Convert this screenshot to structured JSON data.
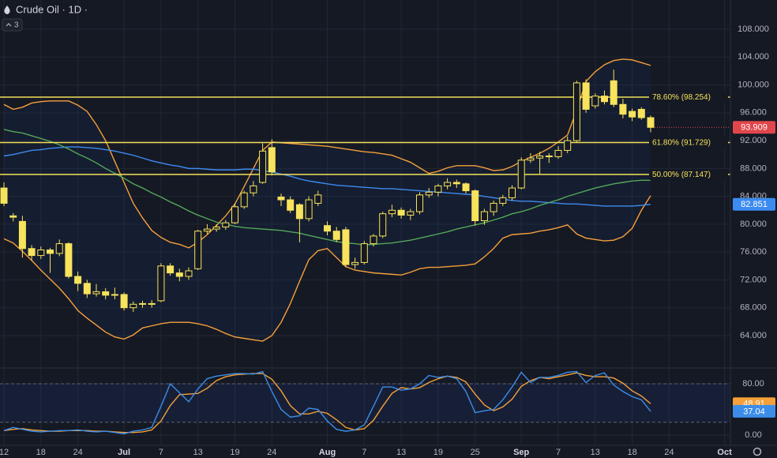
{
  "chart_data": {
    "type": "candlestick",
    "title": "Crude Oil · 1D ·",
    "hidden_indicators": 3,
    "categories": [
      "12",
      null,
      null,
      null,
      "18",
      null,
      null,
      null,
      "24",
      null,
      null,
      null,
      null,
      "Jul",
      null,
      null,
      null,
      "7",
      null,
      null,
      null,
      "13",
      null,
      null,
      null,
      "19",
      null,
      null,
      null,
      "24",
      null,
      null,
      null,
      null,
      null,
      "Aug",
      null,
      null,
      null,
      "7",
      null,
      null,
      null,
      "13",
      null,
      null,
      null,
      "19",
      null,
      null,
      null,
      "25",
      null,
      null,
      null,
      null,
      "Sep",
      null,
      null,
      null,
      "7",
      null,
      null,
      null,
      "13",
      null,
      null,
      null,
      "18",
      null,
      null,
      null,
      "24",
      null,
      null,
      null,
      null,
      null,
      "Oct"
    ],
    "open": [
      85.2,
      81.2,
      80.4,
      76.5,
      75.5,
      76.3,
      75.8,
      77.2,
      72.5,
      71.5,
      70.0,
      70.3,
      69.8,
      69.9,
      68.0,
      68.5,
      68.6,
      69.0,
      74.0,
      73.0,
      72.5,
      73.6,
      79.0,
      79.3,
      79.6,
      80.2,
      82.5,
      84.5,
      86.0,
      91.0,
      83.9,
      83.5,
      82.8,
      80.8,
      83.0,
      79.8,
      79.0,
      79.2,
      74.2,
      74.5,
      77.2,
      78.3,
      81.5,
      82.0,
      81.3,
      81.8,
      84.2,
      84.6,
      85.5,
      86.0,
      85.8,
      84.8,
      80.5,
      81.8,
      83.0,
      83.8,
      85.2,
      89.2,
      89.5,
      89.8,
      89.7,
      90.6,
      92.0,
      100.3,
      97.0,
      98.4,
      100.6,
      97.2,
      96.2,
      96.5,
      95.3,
      null,
      null,
      null,
      null,
      null,
      null,
      null,
      null
    ],
    "high": [
      86.0,
      81.6,
      81.2,
      77.0,
      76.8,
      76.6,
      77.8,
      77.4,
      73.2,
      72.0,
      71.4,
      70.8,
      70.9,
      70.2,
      68.9,
      69.0,
      69.1,
      74.4,
      74.4,
      73.6,
      73.8,
      79.2,
      80.0,
      80.0,
      80.6,
      83.0,
      84.8,
      86.2,
      91.6,
      92.2,
      84.4,
      84.0,
      83.0,
      84.0,
      84.8,
      80.4,
      79.6,
      79.6,
      75.2,
      77.6,
      78.6,
      81.8,
      82.8,
      82.4,
      82.2,
      84.6,
      85.2,
      85.8,
      86.6,
      86.4,
      86.0,
      85.0,
      82.2,
      83.4,
      84.2,
      85.6,
      89.6,
      90.2,
      90.4,
      90.2,
      91.2,
      92.6,
      100.6,
      100.8,
      98.8,
      99.2,
      102.2,
      98.0,
      96.6,
      96.8,
      95.6,
      null,
      null,
      null,
      null,
      null,
      null,
      null,
      null
    ],
    "low": [
      82.6,
      80.4,
      75.2,
      74.8,
      75.0,
      73.0,
      75.4,
      72.2,
      70.4,
      69.4,
      69.6,
      69.2,
      69.2,
      67.6,
      67.4,
      68.0,
      68.0,
      68.8,
      72.6,
      71.8,
      72.0,
      73.4,
      78.6,
      78.9,
      79.2,
      80.0,
      82.2,
      84.0,
      85.8,
      87.0,
      82.6,
      81.6,
      77.4,
      80.4,
      82.6,
      78.4,
      77.4,
      73.8,
      73.6,
      74.2,
      76.8,
      78.0,
      81.0,
      80.8,
      80.6,
      81.4,
      83.8,
      84.0,
      85.0,
      85.2,
      84.4,
      79.8,
      79.9,
      81.2,
      82.6,
      83.4,
      85.0,
      88.8,
      87.2,
      88.8,
      89.4,
      90.2,
      91.8,
      96.0,
      96.6,
      97.2,
      96.8,
      95.2,
      94.8,
      95.0,
      93.2,
      null,
      null,
      null,
      null,
      null,
      null,
      null,
      null
    ],
    "close": [
      83.0,
      81.0,
      76.5,
      75.5,
      76.3,
      75.8,
      77.2,
      72.5,
      71.5,
      70.0,
      70.3,
      69.8,
      69.9,
      68.0,
      68.5,
      68.6,
      68.5,
      74.0,
      73.0,
      72.5,
      73.3,
      79.0,
      79.3,
      79.6,
      80.2,
      82.5,
      84.5,
      85.5,
      90.5,
      87.5,
      83.5,
      82.0,
      80.8,
      83.5,
      84.2,
      79.0,
      77.8,
      74.2,
      74.5,
      77.2,
      78.3,
      81.5,
      82.0,
      81.3,
      81.8,
      84.2,
      84.6,
      85.5,
      86.0,
      85.8,
      84.8,
      80.5,
      81.8,
      83.0,
      83.8,
      85.2,
      89.2,
      89.5,
      89.8,
      89.7,
      90.6,
      92.0,
      100.3,
      96.5,
      98.4,
      97.6,
      97.2,
      95.8,
      95.4,
      95.3,
      93.909,
      null,
      null,
      null,
      null,
      null,
      null,
      null,
      null
    ],
    "color": "#f7e35c",
    "last_color": "#e0474c",
    "band_fill": true,
    "series": [
      {
        "color": "#f5a03a",
        "values": [
          97.2,
          96.5,
          96.8,
          97.4,
          97.6,
          97.7,
          97.7,
          97.7,
          97.1,
          96.2,
          94.3,
          92.0,
          89.0,
          86.0,
          83.0,
          80.9,
          79.1,
          78.1,
          77.4,
          77.1,
          76.6,
          77.4,
          78.5,
          79.8,
          81.2,
          82.9,
          85.4,
          88.0,
          90.6,
          91.8,
          91.7,
          91.6,
          91.5,
          91.4,
          91.3,
          91.2,
          91.0,
          90.8,
          90.6,
          90.4,
          90.3,
          90.1,
          89.9,
          89.4,
          88.9,
          88.1,
          87.3,
          87.6,
          88.1,
          88.4,
          88.4,
          88.4,
          88.1,
          87.7,
          87.8,
          88.3,
          89.0,
          89.6,
          90.2,
          90.9,
          91.8,
          92.8,
          96.4,
          100.5,
          101.9,
          102.9,
          103.5,
          103.7,
          103.6,
          103.2,
          102.8,
          null,
          null,
          null,
          null,
          null,
          null,
          null,
          null
        ]
      },
      {
        "color": "#f5a03a",
        "values": [
          77.9,
          77.3,
          76.1,
          74.8,
          73.4,
          72.1,
          70.8,
          69.3,
          67.6,
          66.5,
          65.5,
          64.5,
          63.8,
          63.5,
          64.1,
          65.1,
          65.4,
          65.7,
          65.9,
          65.9,
          65.9,
          65.7,
          65.4,
          64.9,
          64.3,
          63.8,
          63.6,
          63.4,
          63.2,
          64.0,
          65.9,
          68.6,
          71.8,
          74.9,
          76.2,
          76.5,
          75.2,
          73.9,
          73.4,
          73.2,
          73.0,
          72.9,
          72.8,
          72.7,
          73.1,
          73.6,
          73.8,
          73.8,
          73.9,
          74.0,
          74.1,
          74.3,
          75.3,
          76.5,
          78.0,
          78.5,
          78.6,
          78.7,
          79.0,
          79.2,
          79.5,
          79.9,
          78.6,
          78.0,
          77.8,
          77.6,
          77.7,
          78.2,
          79.4,
          82.0,
          84.1,
          null,
          null,
          null,
          null,
          null,
          null,
          null,
          null
        ]
      },
      {
        "color": "#3d8bf0",
        "last_label": true,
        "values": [
          89.8,
          90.0,
          90.3,
          90.6,
          90.7,
          90.9,
          91.0,
          91.1,
          91.1,
          91.0,
          90.9,
          90.7,
          90.5,
          90.2,
          89.9,
          89.5,
          89.1,
          88.8,
          88.5,
          88.3,
          88.0,
          88.0,
          87.9,
          87.8,
          87.8,
          87.8,
          87.9,
          87.9,
          87.7,
          87.5,
          87.2,
          86.9,
          86.5,
          86.2,
          86.0,
          85.8,
          85.6,
          85.5,
          85.4,
          85.3,
          85.2,
          85.1,
          85.1,
          85.0,
          84.9,
          84.8,
          84.7,
          84.6,
          84.5,
          84.4,
          84.3,
          84.2,
          84.0,
          83.8,
          83.6,
          83.4,
          83.3,
          83.3,
          83.2,
          83.1,
          83.0,
          82.9,
          82.9,
          82.8,
          82.7,
          82.6,
          82.6,
          82.6,
          82.6,
          82.7,
          82.851,
          null,
          null,
          null,
          null,
          null,
          null,
          null,
          null
        ]
      },
      {
        "color": "#52a85a",
        "values": [
          93.6,
          93.3,
          93.1,
          92.7,
          92.3,
          91.9,
          91.4,
          90.8,
          90.1,
          89.5,
          88.8,
          88.0,
          87.3,
          86.6,
          85.8,
          85.2,
          84.5,
          83.9,
          83.2,
          82.6,
          81.9,
          81.3,
          80.8,
          80.3,
          80.0,
          79.7,
          79.5,
          79.4,
          79.3,
          79.2,
          79.1,
          78.9,
          78.7,
          78.4,
          78.1,
          77.8,
          77.5,
          77.3,
          77.2,
          77.0,
          77.1,
          77.2,
          77.3,
          77.5,
          77.7,
          78.0,
          78.3,
          78.6,
          78.9,
          79.3,
          79.6,
          79.9,
          80.2,
          80.6,
          81.0,
          81.5,
          81.8,
          82.2,
          82.7,
          83.1,
          83.5,
          84.0,
          84.4,
          84.8,
          85.2,
          85.5,
          85.8,
          86.0,
          86.2,
          86.3,
          86.3,
          null,
          null,
          null,
          null,
          null,
          null,
          null,
          null
        ]
      }
    ],
    "levels": [
      {
        "value": 98.254,
        "label": "78.60% (98.254)"
      },
      {
        "value": 91.729,
        "label": "61.80% (91.729)"
      },
      {
        "value": 87.147,
        "label": "50.00% (87.147)"
      }
    ],
    "level_color": "#f5e15a",
    "ylim": [
      59.46,
      112.2
    ],
    "yticks": [
      {
        "value": 108,
        "label": "108.000"
      },
      {
        "value": 104,
        "label": "104.000"
      },
      {
        "value": 100,
        "label": "100.000"
      },
      {
        "value": 96,
        "label": "96.000"
      },
      {
        "value": 92,
        "label": "92.000"
      },
      {
        "value": 88,
        "label": "88.000"
      },
      {
        "value": 84,
        "label": "84.000"
      },
      {
        "value": 80,
        "label": "80.000"
      },
      {
        "value": 76,
        "label": "76.000"
      },
      {
        "value": 72,
        "label": "72.000"
      },
      {
        "value": 68,
        "label": "68.000"
      },
      {
        "value": 64,
        "label": "64.000"
      }
    ],
    "grid": true,
    "subchart": {
      "type": "line",
      "ylim": [
        -14.8,
        102.2
      ],
      "yticks": [
        {
          "value": 80,
          "label": "80.00"
        },
        {
          "value": 0,
          "label": "0.00"
        }
      ],
      "band_levels": [
        80,
        20
      ],
      "series": [
        {
          "color": "#f5a03a",
          "last_label": true,
          "values": [
            7,
            9,
            10,
            8,
            7,
            6,
            6,
            7,
            7,
            7,
            6,
            6,
            5,
            4,
            4,
            5,
            8,
            22,
            46,
            63,
            64,
            65,
            73,
            85,
            91,
            94,
            95,
            96,
            96,
            87,
            69,
            46,
            33,
            33,
            37,
            34,
            24,
            12,
            8,
            10,
            23,
            45,
            65,
            74,
            72,
            74,
            82,
            88,
            92,
            90,
            83,
            64,
            47,
            38,
            44,
            56,
            76,
            85,
            90,
            88,
            91,
            94,
            97,
            93,
            91,
            91,
            89,
            81,
            69,
            61,
            48.91,
            null,
            null,
            null,
            null,
            null,
            null,
            null,
            null
          ]
        },
        {
          "color": "#3b8de8",
          "last_label": true,
          "values": [
            7,
            12,
            9,
            6,
            5,
            6,
            7,
            7,
            8,
            6,
            5,
            6,
            4,
            2,
            6,
            8,
            12,
            45,
            80,
            66,
            52,
            72,
            88,
            92,
            94,
            96,
            96,
            95,
            99,
            68,
            40,
            28,
            30,
            42,
            40,
            22,
            9,
            6,
            8,
            16,
            45,
            75,
            75,
            70,
            72,
            80,
            93,
            90,
            92,
            88,
            68,
            35,
            38,
            40,
            55,
            75,
            98,
            82,
            90,
            90,
            93,
            98,
            99,
            82,
            93,
            97,
            78,
            68,
            60,
            55,
            37.04,
            null,
            null,
            null,
            null,
            null,
            null,
            null,
            null
          ]
        }
      ]
    }
  }
}
